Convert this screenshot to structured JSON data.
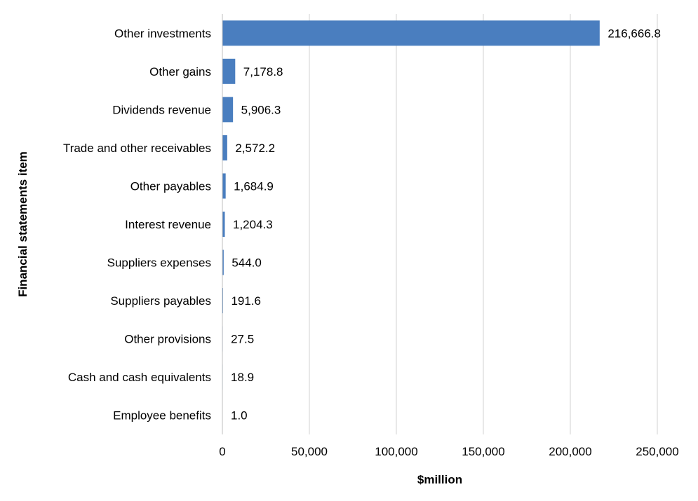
{
  "chart_data": {
    "type": "bar",
    "orientation": "horizontal",
    "categories": [
      "Other investments",
      "Other gains",
      "Dividends revenue",
      "Trade and other receivables",
      "Other payables",
      "Interest revenue",
      "Suppliers expenses",
      "Suppliers payables",
      "Other provisions",
      "Cash and cash equivalents",
      "Employee benefits"
    ],
    "values": [
      216666.8,
      7178.8,
      5906.3,
      2572.2,
      1684.9,
      1204.3,
      544.0,
      191.6,
      27.5,
      18.9,
      1.0
    ],
    "value_labels": [
      "216,666.8",
      "7,178.8",
      "5,906.3",
      "2,572.2",
      "1,684.9",
      "1,204.3",
      "544.0",
      "191.6",
      "27.5",
      "18.9",
      "1.0"
    ],
    "xlabel": "$million",
    "ylabel": "Financial statements item",
    "xlim": [
      0,
      250000
    ],
    "xticks": [
      0,
      50000,
      100000,
      150000,
      200000,
      250000
    ],
    "xtick_labels": [
      "0",
      "50,000",
      "100,000",
      "150,000",
      "200,000",
      "250,000"
    ],
    "grid": "vertical",
    "legend": "none",
    "bar_color": "#4a7ebf"
  }
}
